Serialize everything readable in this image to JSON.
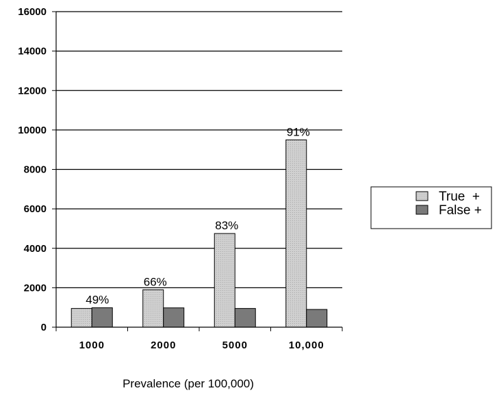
{
  "chart_data": {
    "type": "bar",
    "categories": [
      "1000",
      "2000",
      "5000",
      "10,000"
    ],
    "series": [
      {
        "name": "True  +",
        "values": [
          950,
          1900,
          4750,
          9500
        ],
        "color": "#c8c8c8"
      },
      {
        "name": "False +",
        "values": [
          985,
          980,
          950,
          900
        ],
        "color": "#7a7a7a"
      }
    ],
    "annotations": [
      "49%",
      "66%",
      "83%",
      "91%"
    ],
    "xlabel": "Prevalence (per 100,000)",
    "ylabel": "",
    "ylim": [
      0,
      16000
    ],
    "yticks": [
      "0",
      "2000",
      "4000",
      "6000",
      "8000",
      "10000",
      "12000",
      "14000",
      "16000"
    ],
    "grid": true,
    "legend_position": "right"
  }
}
